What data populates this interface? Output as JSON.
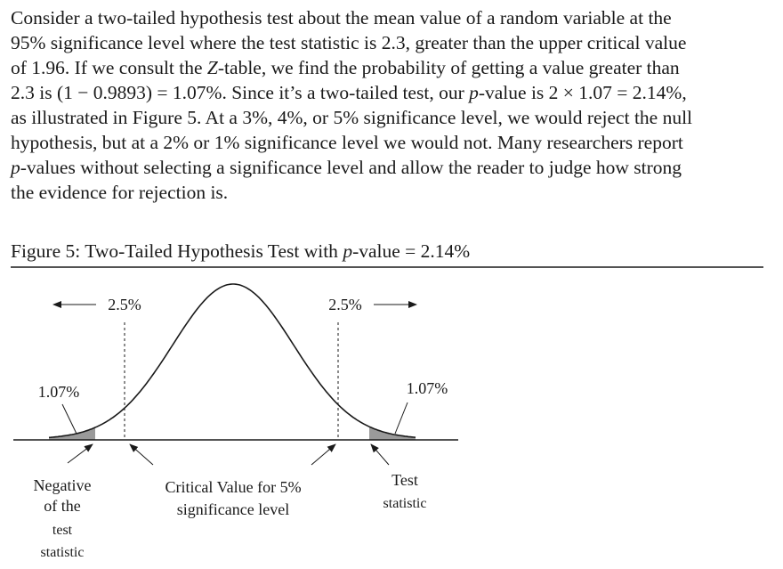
{
  "paragraph": {
    "lines": [
      [
        "Consider a two-tailed hypothesis test about the mean value of a random variable at the"
      ],
      [
        "95% significance level where the test statistic is 2.3, greater than the upper critical value"
      ],
      [
        "of 1.96. If we consult the ",
        {
          "text": "Z",
          "italic": true
        },
        "-table, we find the probability of getting a value greater than"
      ],
      [
        "2.3 is (1 − 0.9893) = 1.07%. Since it’s a two-tailed test, our ",
        {
          "text": "p",
          "italic": true
        },
        "-value is 2 × 1.07 = 2.14%,"
      ],
      [
        "as illustrated in Figure 5. At a 3%, 4%, or 5% significance level, we would reject the null"
      ],
      [
        "hypothesis, but at a 2% or 1% significance level we would not. Many researchers report"
      ],
      [
        {
          "text": "p",
          "italic": true
        },
        "-values without selecting a significance level and allow the reader to judge how strong"
      ],
      [
        "the evidence for rejection is."
      ]
    ]
  },
  "figure": {
    "title": [
      "Figure 5: Two-Tailed Hypothesis Test with ",
      {
        "text": "p",
        "italic": true
      },
      "-value = 2.14%"
    ],
    "left_tail_label": "2.5%",
    "right_tail_label": "2.5%",
    "left_area_label": "1.07%",
    "right_area_label": "1.07%",
    "negative_label": [
      "Negative",
      "of the",
      "test",
      "statistic"
    ],
    "critical_label": [
      "Critical Value for 5%",
      "significance level"
    ],
    "test_label": [
      "Test",
      "statistic"
    ]
  }
}
